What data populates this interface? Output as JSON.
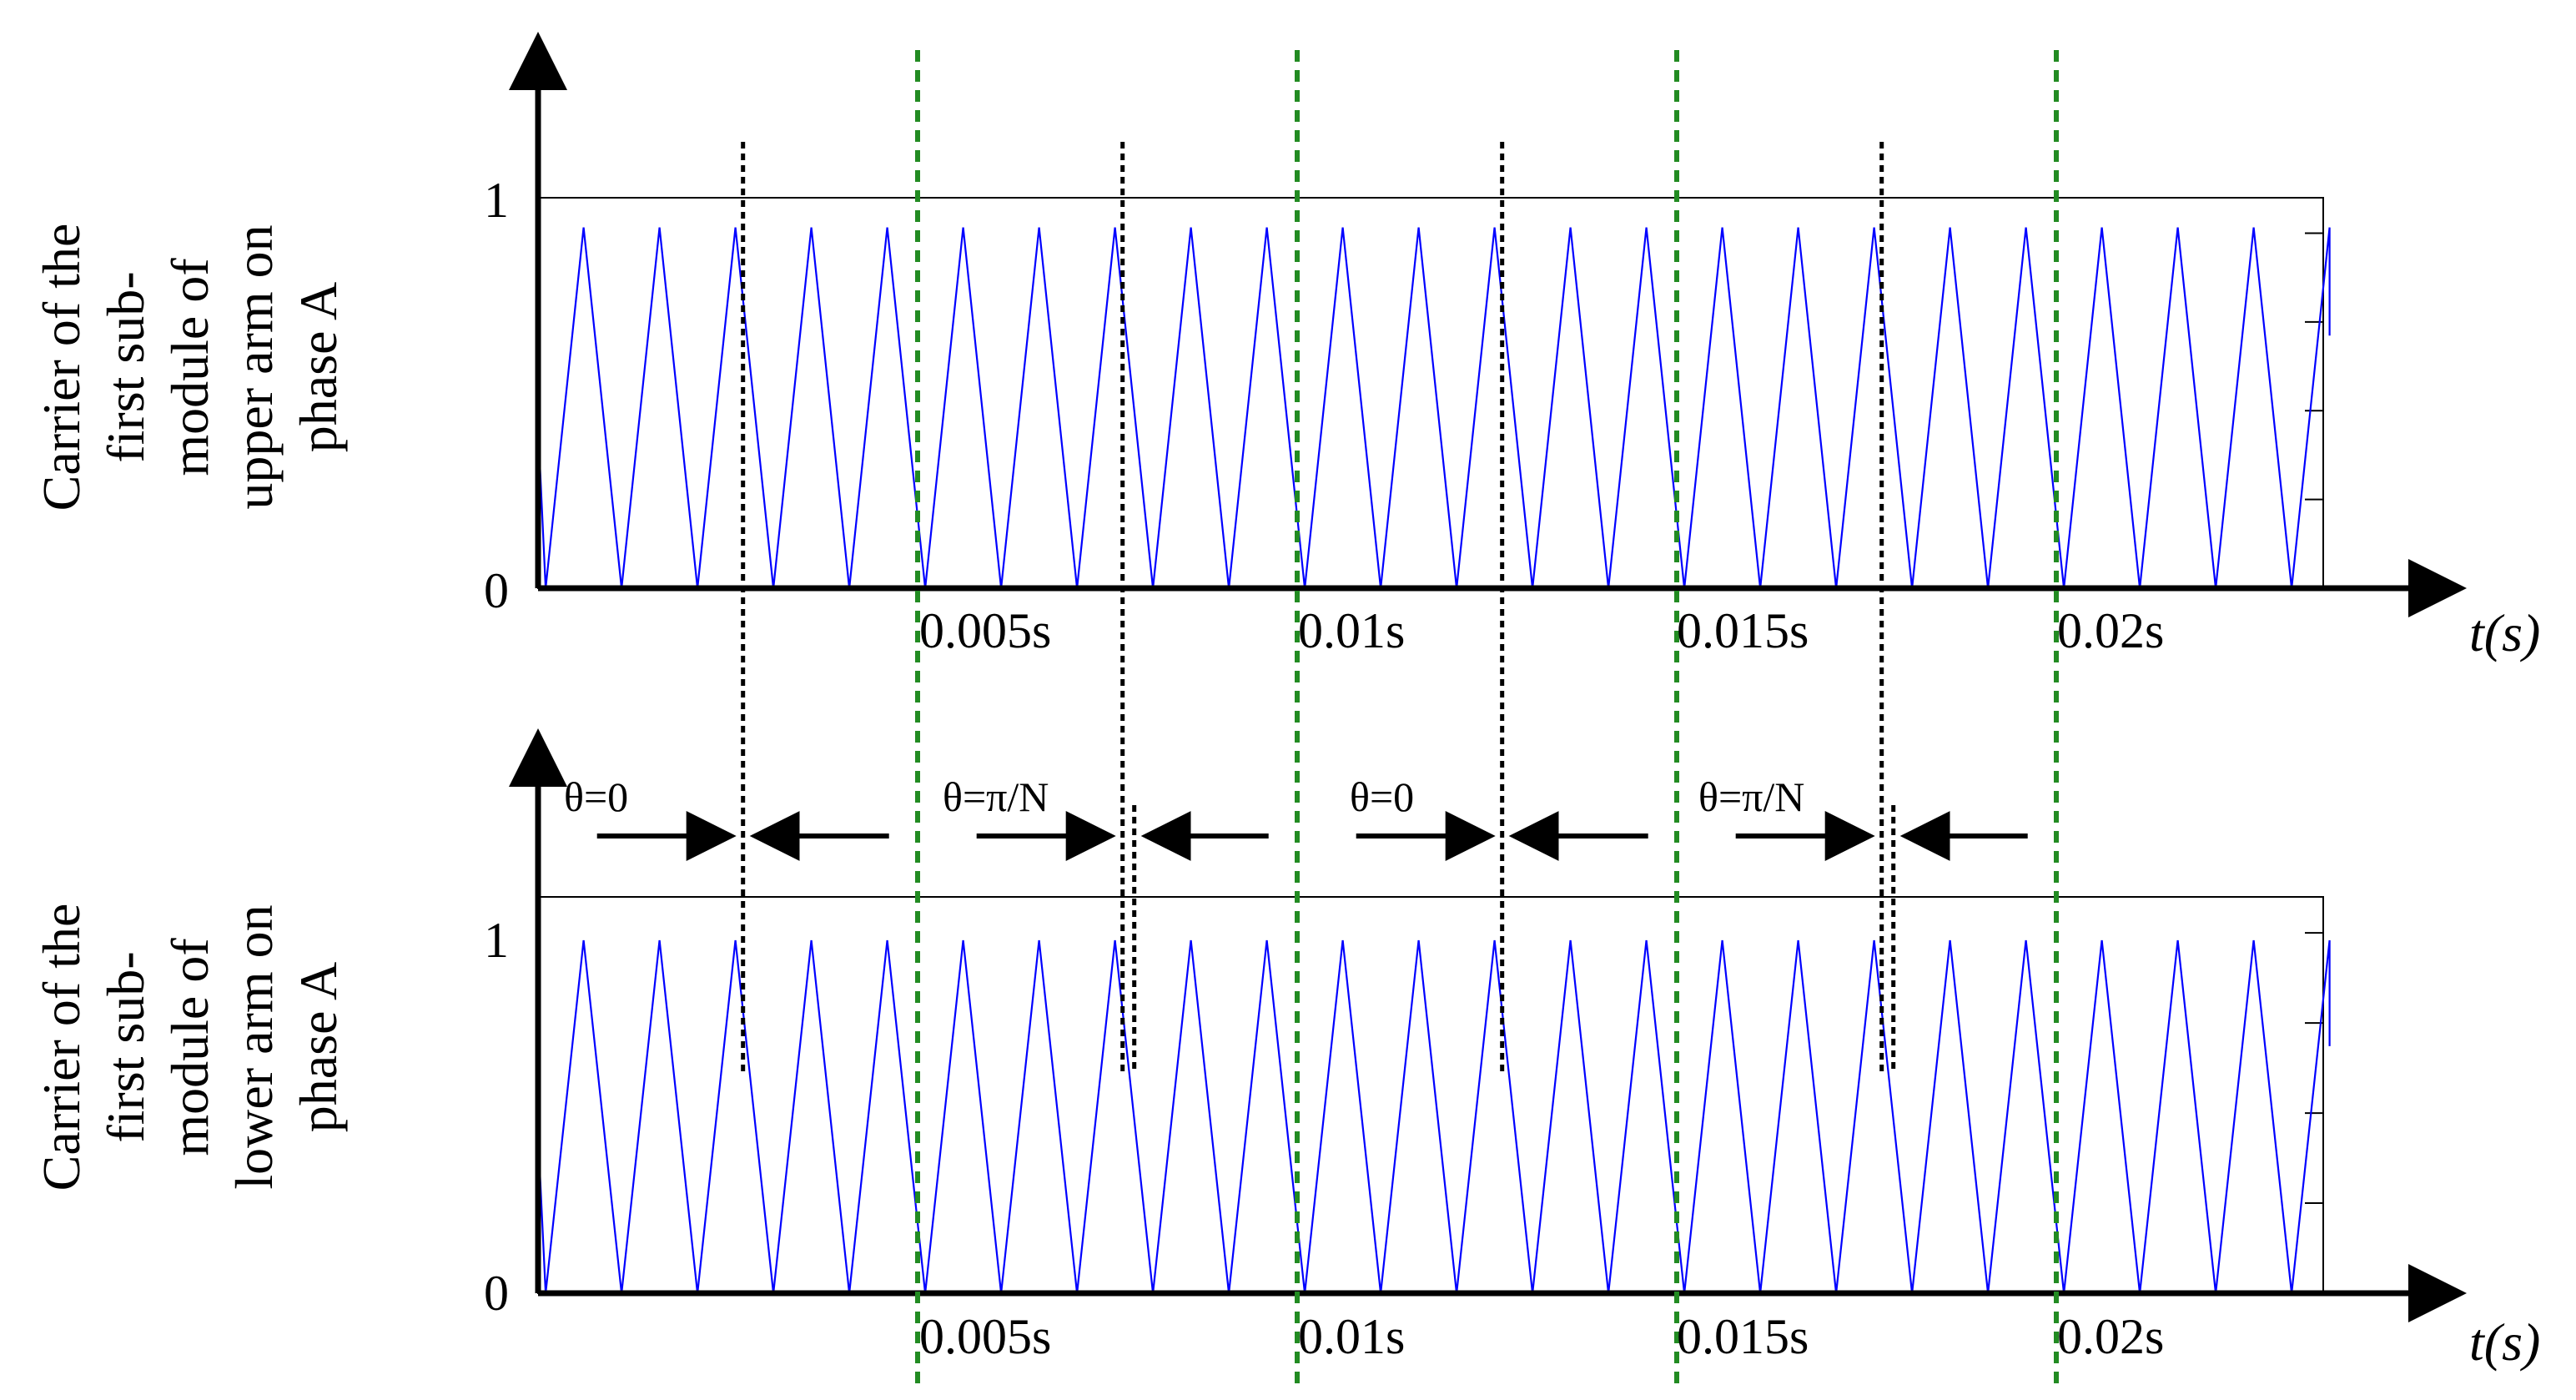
{
  "chart_data": [
    {
      "type": "line",
      "ylabel_lines": [
        "Carrier of the",
        "first sub-",
        "module of",
        "upper arm on",
        "phase A"
      ],
      "xlabel": "t(s)",
      "yticks": [
        "0",
        "1"
      ],
      "xticks": [
        {
          "value": 0.005,
          "label": "0.005s"
        },
        {
          "value": 0.01,
          "label": "0.01s"
        },
        {
          "value": 0.015,
          "label": "0.015s"
        },
        {
          "value": 0.02,
          "label": "0.02s"
        }
      ],
      "xlim": [
        0,
        0.0236
      ],
      "ylim": [
        0,
        1
      ],
      "series": [
        {
          "color": "#0000ff",
          "carrier_period_s": 0.001,
          "peak": 0.92,
          "phase_shift_s": 0
        }
      ],
      "peak_markers_s": [
        0.0027,
        0.0077,
        0.0127,
        0.0177
      ],
      "period_markers_s": [
        0.005,
        0.01,
        0.015,
        0.02
      ]
    },
    {
      "type": "line",
      "ylabel_lines": [
        "Carrier of the",
        "first sub-",
        "module of",
        "lower arm on",
        "phase A"
      ],
      "xlabel": "t(s)",
      "yticks": [
        "0",
        "1"
      ],
      "xticks": [
        {
          "value": 0.005,
          "label": "0.005s"
        },
        {
          "value": 0.01,
          "label": "0.01s"
        },
        {
          "value": 0.015,
          "label": "0.015s"
        },
        {
          "value": 0.02,
          "label": "0.02s"
        }
      ],
      "xlim": [
        0,
        0.0236
      ],
      "ylim": [
        0,
        1.1
      ],
      "series": [
        {
          "color": "#0000ff",
          "carrier_period_s": 0.001,
          "peak": 1.0,
          "phase_shift_s": 0
        }
      ],
      "peak_markers_s": [
        0.0027,
        0.0077,
        0.0127,
        0.0177
      ],
      "period_markers_s": [
        0.005,
        0.01,
        0.015,
        0.02
      ],
      "annotations": [
        {
          "text": "θ=0",
          "at_s": 0.0027,
          "gap": false
        },
        {
          "text": "θ=π/N",
          "at_s": 0.0077,
          "gap": true
        },
        {
          "text": "θ=0",
          "at_s": 0.0127,
          "gap": false
        },
        {
          "text": "θ=π/N",
          "at_s": 0.0177,
          "gap": true
        }
      ]
    }
  ],
  "colors": {
    "carrier": "#0000ff",
    "period_marker": "#228B22",
    "peak_marker": "#000000",
    "axis": "#000000"
  }
}
